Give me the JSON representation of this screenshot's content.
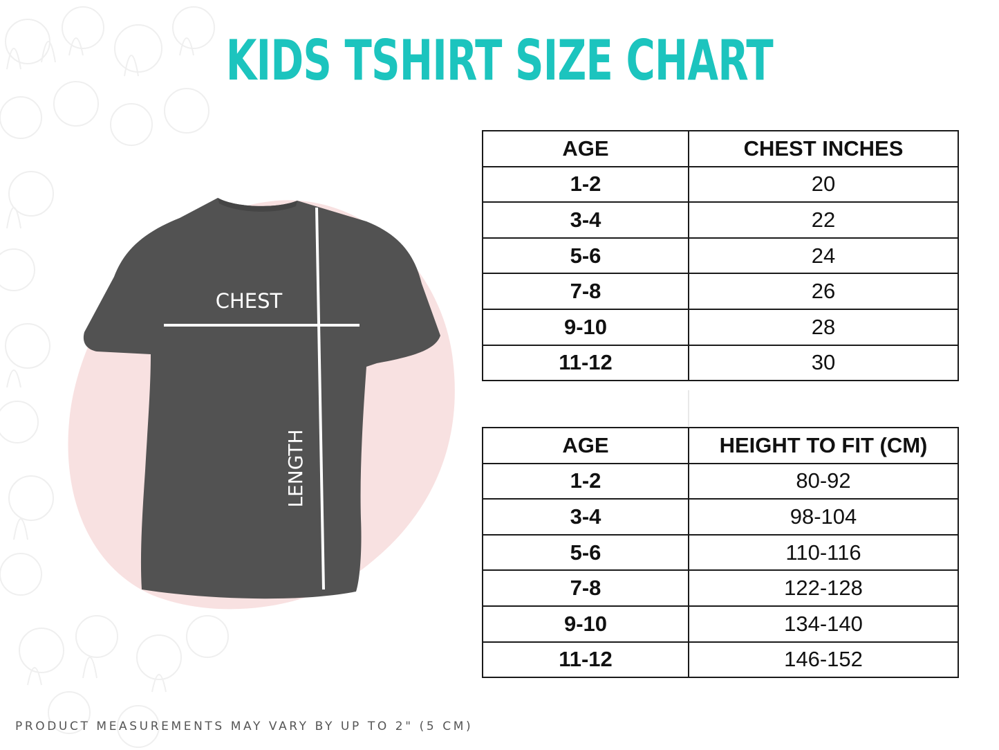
{
  "title": "KIDS TSHIRT SIZE CHART",
  "diagram": {
    "chest_label": "CHEST",
    "length_label": "LENGTH",
    "shirt_color": "#505050",
    "accent_pink": "#f6d6d6"
  },
  "chest_table": {
    "headers": [
      "AGE",
      "CHEST INCHES"
    ],
    "rows": [
      [
        "1-2",
        "20"
      ],
      [
        "3-4",
        "22"
      ],
      [
        "5-6",
        "24"
      ],
      [
        "7-8",
        "26"
      ],
      [
        "9-10",
        "28"
      ],
      [
        "11-12",
        "30"
      ]
    ]
  },
  "height_table": {
    "headers": [
      "AGE",
      "HEIGHT TO FIT (CM)"
    ],
    "rows": [
      [
        "1-2",
        "80-92"
      ],
      [
        "3-4",
        "98-104"
      ],
      [
        "5-6",
        "110-116"
      ],
      [
        "7-8",
        "122-128"
      ],
      [
        "9-10",
        "134-140"
      ],
      [
        "11-12",
        "146-152"
      ]
    ]
  },
  "footnote": "PRODUCT MEASUREMENTS MAY VARY BY UP TO 2\" (5 CM)",
  "colors": {
    "title": "#1cc4be",
    "table_border": "#1a1a1a"
  }
}
